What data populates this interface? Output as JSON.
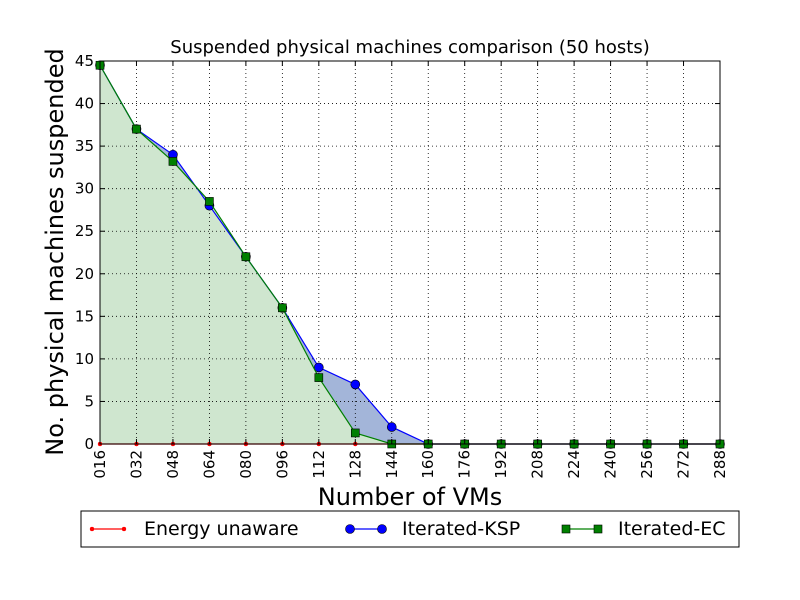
{
  "chart_data": {
    "type": "line",
    "title": "Suspended physical machines comparison (50 hosts)",
    "xlabel": "Number of VMs",
    "ylabel": "No. physical machines suspended",
    "x": [
      "016",
      "032",
      "048",
      "064",
      "080",
      "096",
      "112",
      "128",
      "144",
      "160",
      "176",
      "192",
      "208",
      "224",
      "240",
      "256",
      "272",
      "288"
    ],
    "xlim": [
      0,
      17
    ],
    "ylim": [
      0,
      45
    ],
    "yticks": [
      0,
      5,
      10,
      15,
      20,
      25,
      30,
      35,
      40,
      45
    ],
    "grid": true,
    "legend_position": "bottom",
    "series": [
      {
        "name": "Energy unaware",
        "color": "#ff0000",
        "marker": "dot",
        "fill": null,
        "values": [
          0,
          0,
          0,
          0,
          0,
          0,
          0,
          0,
          0,
          0,
          0,
          0,
          0,
          0,
          0,
          0,
          0,
          0
        ]
      },
      {
        "name": "Iterated-KSP",
        "color": "#0000ff",
        "marker": "circle",
        "fill": "#a3b5d9",
        "values": [
          44.5,
          37,
          34,
          28,
          22,
          16,
          9,
          7,
          2,
          0,
          0,
          0,
          0,
          0,
          0,
          0,
          0,
          0
        ]
      },
      {
        "name": "Iterated-EC",
        "color": "#008000",
        "marker": "square",
        "fill": "#cfe6cf",
        "values": [
          44.5,
          37,
          33.2,
          28.5,
          22,
          16,
          7.8,
          1.3,
          0,
          0,
          0,
          0,
          0,
          0,
          0,
          0,
          0,
          0
        ]
      }
    ]
  }
}
